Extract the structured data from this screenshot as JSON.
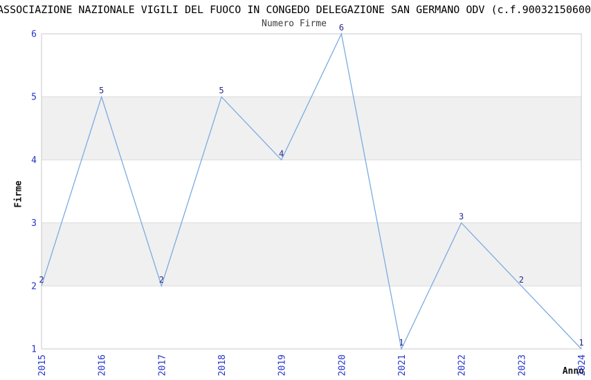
{
  "chart_data": {
    "type": "line",
    "title": "ASSOCIAZIONE NAZIONALE VIGILI DEL FUOCO IN CONGEDO DELEGAZIONE SAN GERMANO ODV (c.f.90032150600",
    "subtitle": "Numero Firme",
    "xlabel": "Anno",
    "ylabel": "Firme",
    "categories": [
      "2015",
      "2016",
      "2017",
      "2018",
      "2019",
      "2020",
      "2021",
      "2022",
      "2023",
      "2024"
    ],
    "values": [
      2,
      5,
      2,
      5,
      4,
      6,
      1,
      3,
      2,
      1
    ],
    "point_labels": [
      "2",
      "5",
      "2",
      "5",
      "4",
      "6",
      "1",
      "3",
      "2",
      "1"
    ],
    "ylim": [
      1,
      6
    ],
    "yticks": [
      1,
      2,
      3,
      4,
      5,
      6
    ],
    "grid": "horizontal-only",
    "legend": "none",
    "gray_bands": [
      [
        2,
        3
      ],
      [
        4,
        5
      ]
    ],
    "colors": {
      "line": "#7aabe0",
      "tick_label": "#2433cc",
      "data_label": "#27278f",
      "band_fill": "#f0f0f0",
      "grid_line": "#dcdcdc",
      "frame": "#c8c8c8",
      "title_text": "#000000",
      "subtitle_text": "#3c3c3c",
      "axis_title_text": "#111111",
      "background": "#ffffff"
    }
  }
}
